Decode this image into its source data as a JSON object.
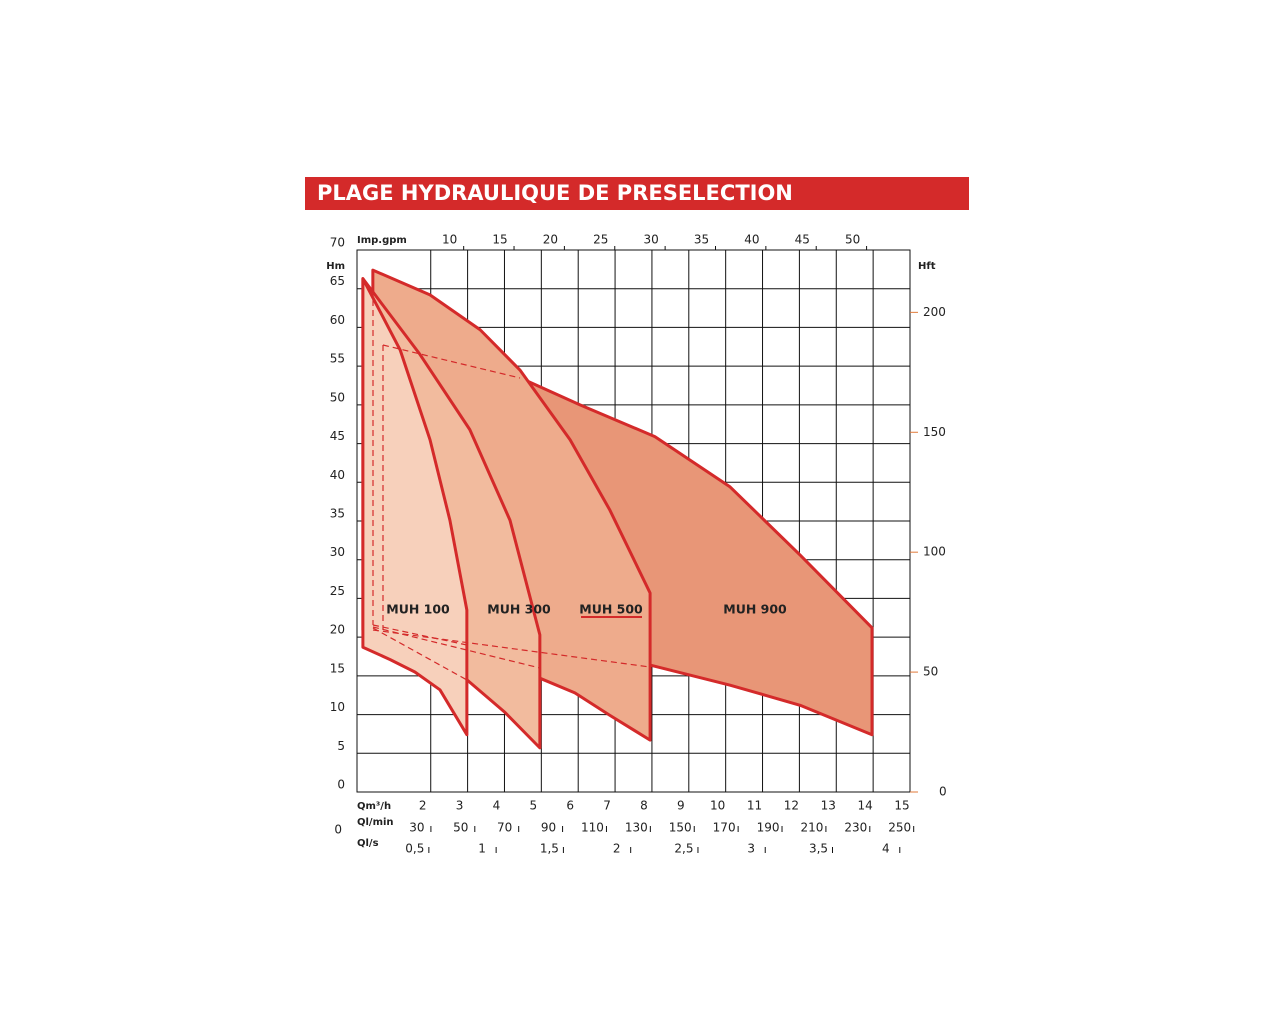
{
  "chart_data": {
    "type": "area-range",
    "title": "PLAGE HYDRAULIQUE DE PRESELECTION",
    "xlabel": "Qm³/h",
    "xlim": [
      0,
      15
    ],
    "xticks": [
      2,
      3,
      4,
      5,
      6,
      7,
      8,
      9,
      10,
      11,
      12,
      13,
      14,
      15
    ],
    "ylabel": "Hm",
    "ylim": [
      0,
      70
    ],
    "yticks": [
      0,
      5,
      10,
      15,
      20,
      25,
      30,
      35,
      40,
      45,
      50,
      55,
      60,
      65,
      70
    ],
    "y2label": "Hft",
    "y2lim": [
      0,
      226
    ],
    "y2ticks": [
      0,
      50,
      100,
      150,
      200
    ],
    "grid": true,
    "secondary_x": [
      {
        "label": "Imp.gpm",
        "position": "top",
        "lim": [
          0.8,
          55.7
        ],
        "ticks": [
          10,
          15,
          20,
          25,
          30,
          35,
          40,
          45,
          50
        ]
      },
      {
        "label": "Ql/min",
        "position": "bottom",
        "lim": [
          2.7,
          254.7
        ],
        "ticks": [
          0,
          30,
          50,
          70,
          90,
          110,
          130,
          150,
          170,
          190,
          210,
          230,
          250
        ]
      },
      {
        "label": "Ql/s",
        "position": "bottom",
        "lim": [
          0.07,
          4.18
        ],
        "ticks": [
          {
            "value": 0.5,
            "label": "0,5"
          },
          1,
          {
            "value": 1.5,
            "label": "1,5"
          },
          2,
          {
            "value": 2.5,
            "label": "2,5"
          },
          3,
          {
            "value": 3.5,
            "label": "3,5"
          },
          4
        ]
      }
    ],
    "series": [
      {
        "name": "MUH 900",
        "color": "#e89677",
        "upper": {
          "x": [
            4.42,
            6.05,
            8.08,
            10.12,
            12.02,
            13.97
          ],
          "y": [
            53.5,
            50.0,
            45.9,
            39.4,
            30.6,
            21.2
          ]
        },
        "lower": {
          "x": [
            13.97,
            12.02,
            10.12,
            7.95,
            4.42
          ],
          "y": [
            7.4,
            11.2,
            13.8,
            16.4,
            18.3
          ]
        }
      },
      {
        "name": "MUH 500",
        "color": "#eeab8c",
        "upper": {
          "x": [
            0.43,
            1.98,
            3.34,
            4.42,
            5.78,
            6.86,
            7.95
          ],
          "y": [
            67.4,
            64.2,
            59.7,
            54.5,
            45.5,
            36.4,
            25.7
          ]
        },
        "lower": {
          "x": [
            7.95,
            6.86,
            5.91,
            4.96,
            0.43
          ],
          "y": [
            6.7,
            9.9,
            12.8,
            14.7,
            21.6
          ]
        }
      },
      {
        "name": "MUH 300",
        "color": "#f2bb9e",
        "upper": {
          "x": [
            0.16,
            1.71,
            3.06,
            4.15,
            4.96
          ],
          "y": [
            66.3,
            56.5,
            46.8,
            35.1,
            20.3
          ]
        },
        "lower": {
          "x": [
            4.96,
            4.01,
            2.98,
            0.16
          ],
          "y": [
            5.7,
            10.3,
            14.5,
            20.9
          ]
        }
      },
      {
        "name": "MUH 100",
        "color": "#f7d0bb",
        "upper": {
          "x": [
            0.16,
            1.17,
            1.98,
            2.52,
            2.98
          ],
          "y": [
            66.3,
            57.1,
            45.5,
            35.1,
            23.5
          ]
        },
        "lower": {
          "x": [
            2.98,
            2.25,
            1.57,
            0.9,
            0.16
          ],
          "y": [
            7.4,
            13.2,
            15.5,
            17.1,
            18.7
          ]
        }
      }
    ]
  }
}
